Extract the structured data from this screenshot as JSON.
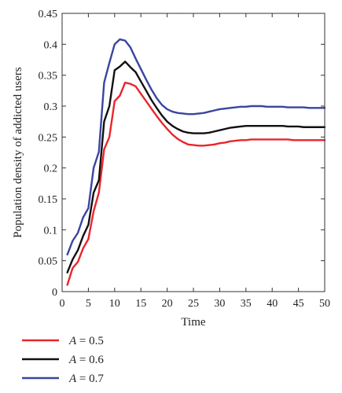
{
  "chart_data": {
    "type": "line",
    "title": "",
    "xlabel": "Time",
    "ylabel": "Population density of addicted users",
    "xlim": [
      0,
      50
    ],
    "ylim": [
      0,
      0.45
    ],
    "xticks": [
      0,
      5,
      10,
      15,
      20,
      25,
      30,
      35,
      40,
      45,
      50
    ],
    "yticks": [
      0,
      0.05,
      0.1,
      0.15,
      0.2,
      0.25,
      0.3,
      0.35,
      0.4,
      0.45
    ],
    "xtick_labels": [
      "0",
      "5",
      "10",
      "15",
      "20",
      "25",
      "30",
      "35",
      "40",
      "45",
      "50"
    ],
    "ytick_labels": [
      "0",
      "0.05",
      "0.1",
      "0.15",
      "0.2",
      "0.25",
      "0.3",
      "0.35",
      "0.4",
      "0.45"
    ],
    "grid": false,
    "legend_position": "below-left",
    "x": [
      1,
      2,
      3,
      4,
      5,
      6,
      7,
      8,
      9,
      10,
      11,
      12,
      13,
      14,
      15,
      16,
      17,
      18,
      19,
      20,
      21,
      22,
      23,
      24,
      25,
      26,
      27,
      28,
      29,
      30,
      31,
      32,
      33,
      34,
      35,
      36,
      37,
      38,
      39,
      40,
      41,
      42,
      43,
      44,
      45,
      46,
      47,
      48,
      49,
      50
    ],
    "series": [
      {
        "name": "A = 0.5",
        "legend_var": "A",
        "legend_rest": " = 0.5",
        "color": "#e8262d",
        "values": [
          0.011,
          0.038,
          0.048,
          0.07,
          0.085,
          0.13,
          0.16,
          0.23,
          0.25,
          0.308,
          0.317,
          0.338,
          0.336,
          0.332,
          0.32,
          0.308,
          0.296,
          0.284,
          0.273,
          0.263,
          0.254,
          0.247,
          0.242,
          0.238,
          0.237,
          0.236,
          0.236,
          0.237,
          0.238,
          0.24,
          0.241,
          0.243,
          0.244,
          0.245,
          0.245,
          0.246,
          0.246,
          0.246,
          0.246,
          0.246,
          0.246,
          0.246,
          0.246,
          0.245,
          0.245,
          0.245,
          0.245,
          0.245,
          0.245,
          0.245
        ]
      },
      {
        "name": "A = 0.6",
        "legend_var": "A",
        "legend_rest": " = 0.6",
        "color": "#111111",
        "values": [
          0.031,
          0.052,
          0.067,
          0.09,
          0.108,
          0.16,
          0.18,
          0.275,
          0.3,
          0.358,
          0.364,
          0.372,
          0.363,
          0.355,
          0.34,
          0.325,
          0.31,
          0.297,
          0.285,
          0.275,
          0.268,
          0.263,
          0.259,
          0.257,
          0.256,
          0.256,
          0.256,
          0.257,
          0.259,
          0.261,
          0.263,
          0.265,
          0.266,
          0.267,
          0.268,
          0.268,
          0.268,
          0.268,
          0.268,
          0.268,
          0.268,
          0.268,
          0.267,
          0.267,
          0.267,
          0.266,
          0.266,
          0.266,
          0.266,
          0.266
        ]
      },
      {
        "name": "A = 0.7",
        "legend_var": "A",
        "legend_rest": " = 0.7",
        "color": "#3a45a0",
        "values": [
          0.06,
          0.082,
          0.095,
          0.12,
          0.135,
          0.2,
          0.226,
          0.338,
          0.37,
          0.4,
          0.408,
          0.406,
          0.395,
          0.377,
          0.36,
          0.343,
          0.327,
          0.313,
          0.302,
          0.295,
          0.291,
          0.289,
          0.288,
          0.287,
          0.287,
          0.288,
          0.289,
          0.291,
          0.293,
          0.295,
          0.296,
          0.297,
          0.298,
          0.299,
          0.299,
          0.3,
          0.3,
          0.3,
          0.299,
          0.299,
          0.299,
          0.299,
          0.298,
          0.298,
          0.298,
          0.298,
          0.297,
          0.297,
          0.297,
          0.297
        ]
      }
    ]
  }
}
